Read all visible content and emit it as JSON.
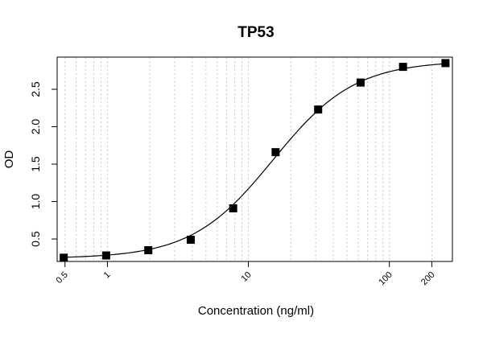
{
  "chart_data": {
    "type": "scatter",
    "title": "TP53",
    "xlabel": "Concentration (ng/ml)",
    "ylabel": "OD",
    "x_scale": "log",
    "xlim": [
      0.44,
      280
    ],
    "ylim": [
      0.2,
      2.93
    ],
    "x_ticks": [
      0.5,
      1,
      10,
      100,
      200
    ],
    "x_tick_labels": [
      "0.5",
      "1",
      "10",
      "100",
      "200"
    ],
    "y_ticks": [
      0.5,
      1.0,
      1.5,
      2.0,
      2.5
    ],
    "y_tick_labels": [
      "0.5",
      "1.0",
      "1.5",
      "2.0",
      "2.5"
    ],
    "grid": "vertical dotted lines on log minor ticks",
    "series": [
      {
        "marker": "filled-square",
        "color": "#000000",
        "x": [
          0.49,
          0.98,
          1.95,
          3.9,
          7.8,
          15.6,
          31.25,
          62.5,
          125,
          250
        ],
        "y": [
          0.25,
          0.28,
          0.35,
          0.49,
          0.91,
          1.66,
          2.23,
          2.59,
          2.8,
          2.85
        ]
      }
    ],
    "fit": {
      "type": "4PL",
      "bottom": 0.24,
      "top": 2.88,
      "ec50": 15.0,
      "hill": 1.5,
      "color": "#000000"
    }
  }
}
